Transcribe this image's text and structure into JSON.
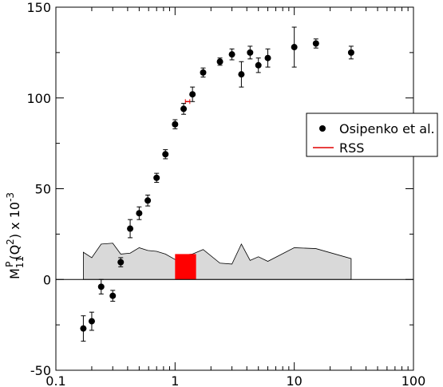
{
  "chart_data": {
    "type": "scatter",
    "x_scale": "log",
    "xlim": [
      0.1,
      100
    ],
    "ylim": [
      -50,
      150
    ],
    "x_tick_labels": [
      "0.1",
      "1",
      "10",
      "100"
    ],
    "y_tick_labels": [
      "-50",
      "0",
      "50",
      "100",
      "150"
    ],
    "ylabel": {
      "main": "M",
      "sub": "11",
      "sup": "P",
      "arg": "(Q",
      "arg_sup": "2",
      "arg_close": ") x 10",
      "exp": "-3"
    },
    "legend": {
      "position": "right",
      "entries": [
        {
          "label": "Osipenko et al.",
          "marker": "filled-circle",
          "color": "#000000"
        },
        {
          "label": "RSS",
          "marker": "line",
          "color": "#e00000"
        }
      ]
    },
    "series": [
      {
        "name": "Osipenko et al.",
        "points": [
          {
            "x": 0.17,
            "y": -27,
            "err": 7
          },
          {
            "x": 0.2,
            "y": -23,
            "err": 5
          },
          {
            "x": 0.24,
            "y": -4,
            "err": 4
          },
          {
            "x": 0.3,
            "y": -9,
            "err": 3
          },
          {
            "x": 0.35,
            "y": 9.5,
            "err": 2.5
          },
          {
            "x": 0.42,
            "y": 28,
            "err": 5
          },
          {
            "x": 0.5,
            "y": 36.5,
            "err": 3.5
          },
          {
            "x": 0.59,
            "y": 43.5,
            "err": 3
          },
          {
            "x": 0.7,
            "y": 56,
            "err": 2.5
          },
          {
            "x": 0.83,
            "y": 69,
            "err": 2.5
          },
          {
            "x": 1.0,
            "y": 85.5,
            "err": 2.5
          },
          {
            "x": 1.18,
            "y": 94,
            "err": 3
          },
          {
            "x": 1.4,
            "y": 102,
            "err": 4
          },
          {
            "x": 1.72,
            "y": 114,
            "err": 2.5
          },
          {
            "x": 2.38,
            "y": 120,
            "err": 2
          },
          {
            "x": 3.0,
            "y": 124,
            "err": 3
          },
          {
            "x": 3.6,
            "y": 113,
            "err": 7
          },
          {
            "x": 4.26,
            "y": 125,
            "err": 3.5
          },
          {
            "x": 5.0,
            "y": 118,
            "err": 4
          },
          {
            "x": 6.0,
            "y": 122,
            "err": 5
          },
          {
            "x": 10.0,
            "y": 128,
            "err": 11
          },
          {
            "x": 15.2,
            "y": 130,
            "err": 2.5
          },
          {
            "x": 30.0,
            "y": 125,
            "err": 3.5
          }
        ]
      },
      {
        "name": "RSS",
        "points": [
          {
            "x": 1.22,
            "y": 98
          },
          {
            "x": 1.33,
            "y": 98
          }
        ]
      }
    ],
    "systematic_band": {
      "color": "#d9d9d9",
      "points": [
        {
          "x": 0.17,
          "y": 15
        },
        {
          "x": 0.2,
          "y": 12
        },
        {
          "x": 0.24,
          "y": 19.5
        },
        {
          "x": 0.3,
          "y": 20
        },
        {
          "x": 0.35,
          "y": 14
        },
        {
          "x": 0.42,
          "y": 14.5
        },
        {
          "x": 0.5,
          "y": 17.5
        },
        {
          "x": 0.59,
          "y": 16
        },
        {
          "x": 0.7,
          "y": 15.5
        },
        {
          "x": 0.83,
          "y": 14
        },
        {
          "x": 1.0,
          "y": 11
        },
        {
          "x": 1.18,
          "y": 13.5
        },
        {
          "x": 1.4,
          "y": 14
        },
        {
          "x": 1.72,
          "y": 16.5
        },
        {
          "x": 2.38,
          "y": 9
        },
        {
          "x": 3.0,
          "y": 8.5
        },
        {
          "x": 3.6,
          "y": 19.5
        },
        {
          "x": 4.26,
          "y": 10.5
        },
        {
          "x": 5.0,
          "y": 12.5
        },
        {
          "x": 6.0,
          "y": 10
        },
        {
          "x": 10.0,
          "y": 17.5
        },
        {
          "x": 15.2,
          "y": 17
        },
        {
          "x": 30.0,
          "y": 11.5
        }
      ]
    },
    "highlight_region": {
      "color": "#ff0000",
      "x_range": [
        1.0,
        1.5
      ],
      "y_range": [
        0,
        14
      ]
    },
    "zero_line": true,
    "grid": false
  }
}
